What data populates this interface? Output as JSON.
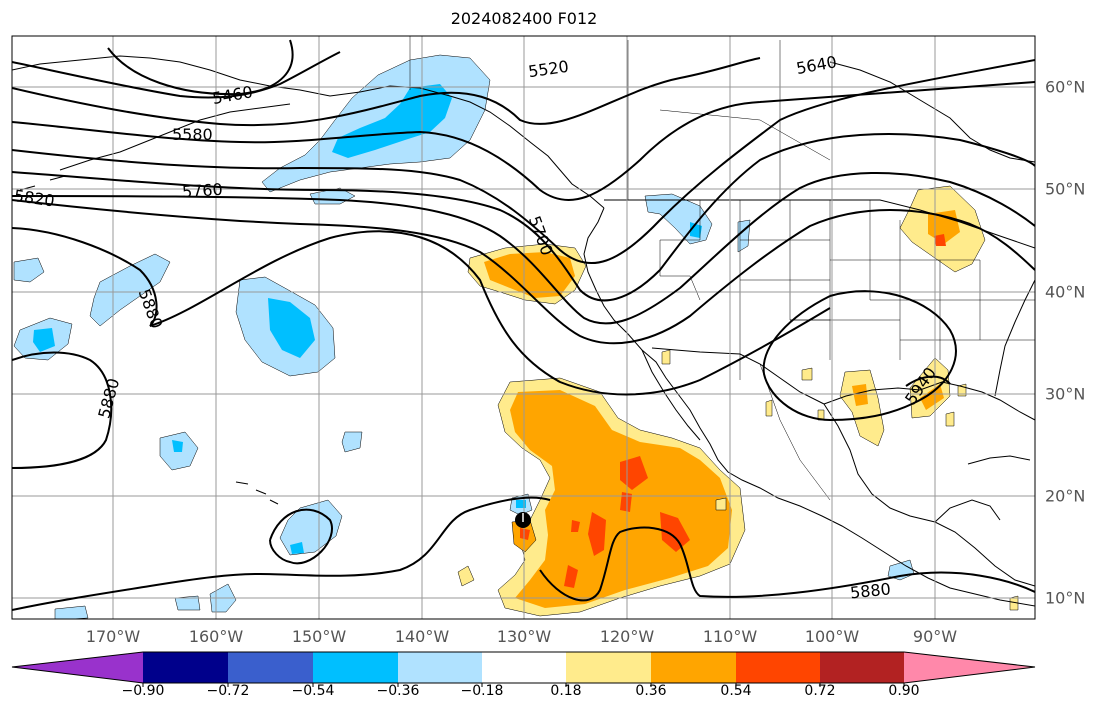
{
  "title": "2024082400 F012",
  "colors": {
    "frame": "#000000",
    "grid": "#999999",
    "coast": "#000000",
    "contour": "#000000",
    "storm_marker": "#000000"
  },
  "longitude_labels": [
    "170°W",
    "160°W",
    "150°W",
    "140°W",
    "130°W",
    "120°W",
    "110°W",
    "100°W",
    "90°W"
  ],
  "latitude_labels": [
    "60°N",
    "50°N",
    "40°N",
    "30°N",
    "20°N",
    "10°N"
  ],
  "contour_labels": [
    "5460",
    "5520",
    "5580",
    "5640",
    "5700",
    "5760",
    "5820",
    "5880",
    "5880",
    "5880",
    "5940"
  ],
  "colorbar": {
    "tick_labels": [
      "−0.90",
      "−0.72",
      "−0.54",
      "−0.36",
      "−0.18",
      "0.18",
      "0.36",
      "0.54",
      "0.72",
      "0.90"
    ],
    "colors": [
      "#9932cc",
      "#00008b",
      "#3a5fcd",
      "#00bfff",
      "#b0e2ff",
      "#ffffff",
      "#ffeb8c",
      "#ffa500",
      "#ff4500",
      "#b22222",
      "#ff88aa"
    ]
  }
}
